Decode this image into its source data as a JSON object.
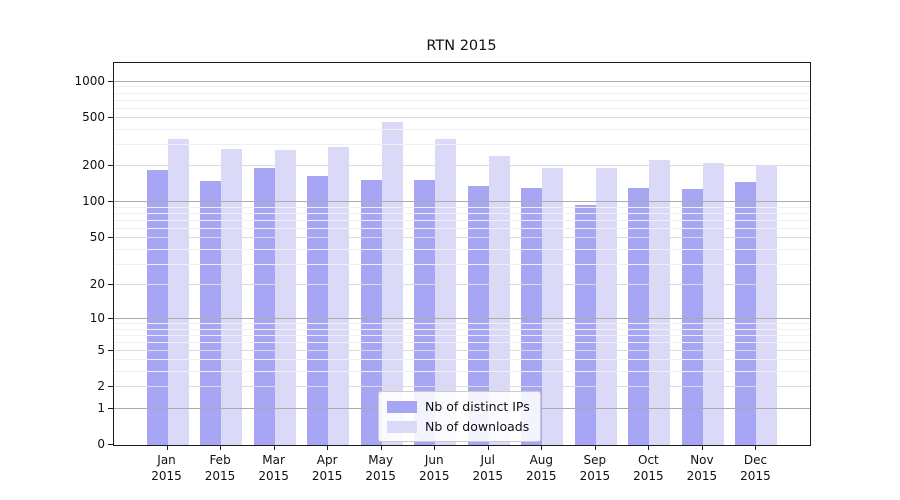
{
  "title": "RTN 2015",
  "chart_data": {
    "type": "bar",
    "title": "RTN 2015",
    "categories": [
      "Jan 2015",
      "Feb 2015",
      "Mar 2015",
      "Apr 2015",
      "May 2015",
      "Jun 2015",
      "Jul 2015",
      "Aug 2015",
      "Sep 2015",
      "Oct 2015",
      "Nov 2015",
      "Dec 2015"
    ],
    "series": [
      {
        "name": "Nb of distinct IPs",
        "color": "#a6a6f4",
        "values": [
          185,
          150,
          193,
          166,
          155,
          154,
          138,
          131,
          95,
          131,
          130,
          147
        ]
      },
      {
        "name": "Nb of downloads",
        "color": "#dadaf8",
        "values": [
          338,
          279,
          272,
          289,
          470,
          335,
          245,
          195,
          192,
          227,
          214,
          204
        ]
      }
    ],
    "xlabel": "",
    "ylabel": "",
    "y_ticks": [
      1000,
      500,
      200,
      100,
      50,
      20,
      10,
      5,
      2,
      1,
      0
    ],
    "y_scale": "log-like (symlog, log10(value+1))",
    "ylim": [
      0,
      1430
    ],
    "grid": true,
    "legend_position": "lower center inside plot",
    "colors": {
      "grid_power10": "#ababab",
      "grid_labeled": "#dcdcde",
      "grid_minor": "#f0f0f0",
      "axis": "#1a1a1a",
      "background": "#ffffff"
    }
  }
}
